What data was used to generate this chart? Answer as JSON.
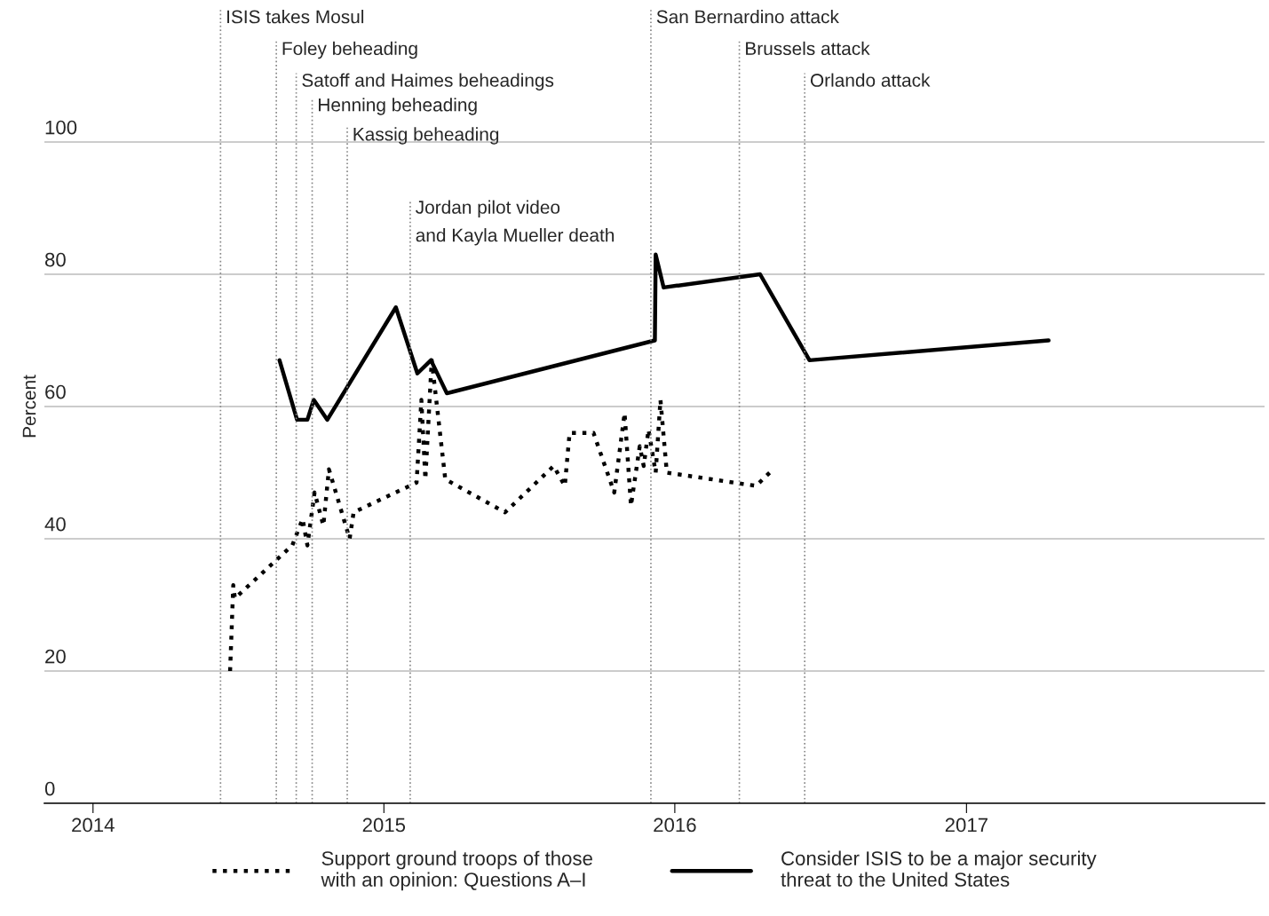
{
  "chart_data": {
    "type": "line",
    "ylabel": "Percent",
    "xlim": [
      "2013-11-01",
      "2018-01-10"
    ],
    "xticks": [
      "2014",
      "2015",
      "2016",
      "2017"
    ],
    "ylim": [
      0,
      120
    ],
    "yticks": [
      0,
      20,
      40,
      60,
      80,
      100
    ],
    "grid": "y",
    "legend": "bottom",
    "marker": "none",
    "series": [
      {
        "name": "Support ground troops of those\nwith an opinion: Questions A–I",
        "color": "#000000",
        "line_style": "dotted",
        "x": [
          "2014-06-22",
          "2014-06-26",
          "2014-06-28",
          "2014-09-08",
          "2014-09-21",
          "2014-09-27",
          "2014-10-06",
          "2014-10-17",
          "2014-10-24",
          "2014-11-19",
          "2014-11-24",
          "2015-02-11",
          "2015-02-17",
          "2015-02-22",
          "2015-03-02",
          "2015-03-19",
          "2015-06-02",
          "2015-08-02",
          "2015-08-16",
          "2015-08-22",
          "2015-09-21",
          "2015-10-17",
          "2015-10-30",
          "2015-11-07",
          "2015-11-18",
          "2015-11-23",
          "2015-11-29",
          "2015-12-08",
          "2015-12-14",
          "2015-12-22",
          "2016-04-12",
          "2016-04-29"
        ],
        "values": [
          20,
          33,
          31,
          39,
          43,
          39,
          47,
          42,
          50.5,
          40,
          44,
          48.5,
          61,
          49,
          67,
          49,
          44,
          51,
          48,
          56,
          56,
          47,
          59,
          45,
          54,
          51,
          56.5,
          50,
          61,
          50,
          48,
          50
        ]
      },
      {
        "name": "Consider ISIS to be a major security\nthreat to the United States",
        "color": "#000000",
        "line_style": "solid",
        "x": [
          "2014-08-23",
          "2014-09-14",
          "2014-09-27",
          "2014-10-05",
          "2014-10-22",
          "2015-01-16",
          "2015-02-12",
          "2015-03-01",
          "2015-03-21",
          "2015-12-07",
          "2015-12-08",
          "2015-12-18",
          "2016-04-17",
          "2016-06-18",
          "2017-04-14"
        ],
        "values": [
          67,
          58,
          58,
          61,
          58,
          75,
          65,
          67,
          62,
          70,
          83,
          78,
          80,
          67,
          70
        ]
      }
    ],
    "ref_lines": [
      {
        "axis": "x",
        "value": "2014-06-10",
        "label": "ISIS takes Mosul",
        "color": "#888888",
        "line_style": "dotted"
      },
      {
        "axis": "x",
        "value": "2014-08-19",
        "label": "Foley beheading",
        "color": "#888888",
        "line_style": "dotted"
      },
      {
        "axis": "x",
        "value": "2014-09-13",
        "label": "Satoff and Haimes beheadings",
        "color": "#888888",
        "line_style": "dotted"
      },
      {
        "axis": "x",
        "value": "2014-10-03",
        "label": "Henning beheading",
        "color": "#888888",
        "line_style": "dotted"
      },
      {
        "axis": "x",
        "value": "2014-11-16",
        "label": "Kassig beheading",
        "color": "#888888",
        "line_style": "dotted"
      },
      {
        "axis": "x",
        "value": "2015-02-03",
        "label": "Jordan pilot video\nand Kayla Mueller death",
        "color": "#888888",
        "line_style": "dotted"
      },
      {
        "axis": "x",
        "value": "2015-12-02",
        "label": "San Bernardino attack",
        "color": "#888888",
        "line_style": "dotted"
      },
      {
        "axis": "x",
        "value": "2016-03-22",
        "label": "Brussels attack",
        "color": "#888888",
        "line_style": "dotted"
      },
      {
        "axis": "x",
        "value": "2016-06-12",
        "label": "Orlando attack",
        "color": "#888888",
        "line_style": "dotted"
      }
    ]
  }
}
